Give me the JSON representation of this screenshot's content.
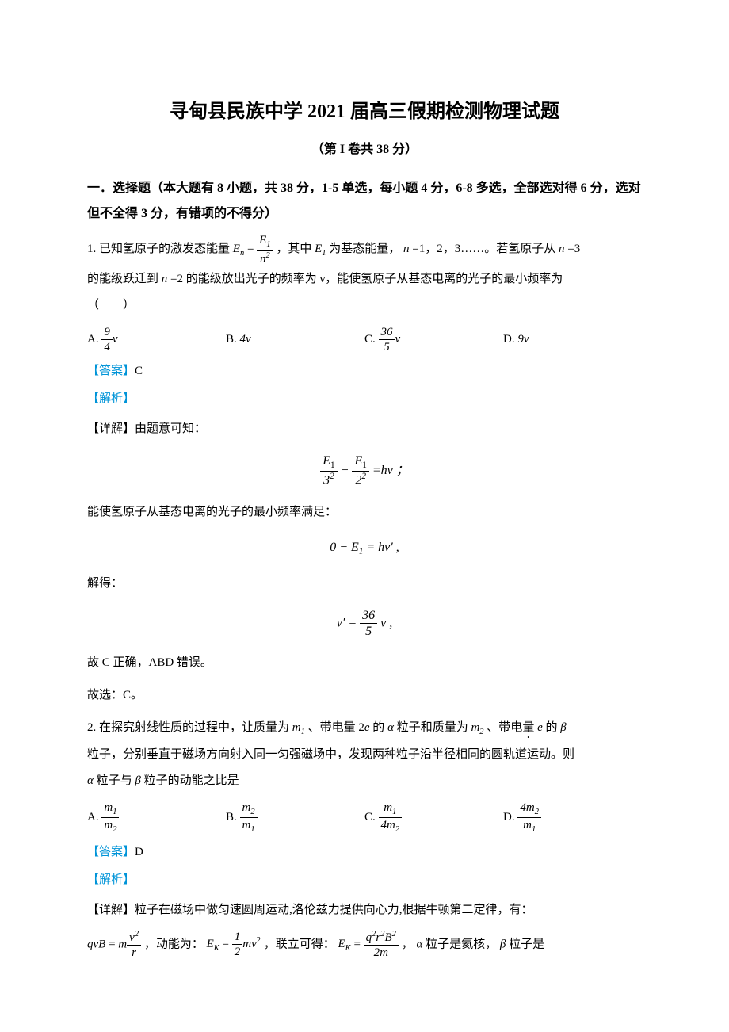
{
  "title": "寻甸县民族中学 2021 届高三假期检测物理试题",
  "subtitle": "（第 I 卷共 38 分）",
  "section_heading": "一．选择题（本大题有 8 小题，共 38 分，1-5 单选，每小题 4 分，6-8 多选，全部选对得 6 分，选对但不全得 3 分，有错项的不得分）",
  "q1": {
    "prefix": "1. 已知氢原子的激发态能量",
    "mid1": "，其中",
    "e1_text": "E",
    "mid2": "为基态能量，",
    "n_text": "n",
    "mid3": "=1，2，3……。若氢原子从",
    "mid4": "=3",
    "line2_a": "的能级跃迁到",
    "line2_b": "=2 的能级放出光子的频率为 ν，能使氢原子从基态电离的光子的最小频率为",
    "line3": "（　　）",
    "options": {
      "a_label": "A.",
      "b_label": "B.",
      "b_text": "4ν",
      "c_label": "C.",
      "d_label": "D.",
      "d_text": "9ν"
    },
    "answer_label": "【答案】",
    "answer": "C",
    "analysis_label": "【解析】",
    "detail_intro": "【详解】由题意可知：",
    "text_after_f1": "能使氢原子从基态电离的光子的最小频率满足：",
    "text_after_f2": "解得：",
    "text_conclusion": "故 C 正确，ABD 错误。",
    "text_select": "故选：C。"
  },
  "q2": {
    "prefix": "2. 在探究射线性质的过程中，让质量为",
    "m1": "m",
    "mid1": "、带电量 2",
    "e": "e",
    "mid2": " 的",
    "alpha": " α ",
    "mid3": "粒子和质量为",
    "m2": "m",
    "mid4": "、带电",
    "mid4b": "量",
    "mid5": " 的",
    "beta": " β",
    "line2": "粒子，分别垂直于磁场方向射入同一匀强磁场中，发现两种粒子沿半径相同的圆轨道运动。则",
    "line3_a": "α",
    "line3_b": " 粒子与 ",
    "line3_c": "β",
    "line3_d": " 粒子的动能之比是",
    "options": {
      "a_label": "A.",
      "b_label": "B.",
      "c_label": "C.",
      "d_label": "D."
    },
    "answer_label": "【答案】",
    "answer": "D",
    "analysis_label": "【解析】",
    "detail_intro": "【详解】粒子在磁场中做匀速圆周运动,洛伦兹力提供向心力,根据牛顿第二定律，有：",
    "f_text1": "，动能为：",
    "f_text2": "，联立可得：",
    "f_text3": "，",
    "f_text4": "粒子是氦核，",
    "f_text5": "粒子是"
  },
  "colors": {
    "text": "#000000",
    "accent": "#0094d8",
    "background": "#ffffff"
  }
}
